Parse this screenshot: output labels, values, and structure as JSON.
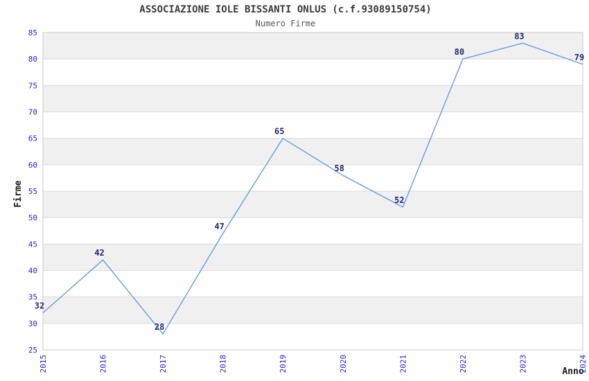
{
  "chart_data": {
    "type": "line",
    "title": "ASSOCIAZIONE IOLE BISSANTI ONLUS (c.f.93089150754)",
    "subtitle": "Numero Firme",
    "xlabel": "Anno",
    "ylabel": "Firme",
    "categories": [
      "2015",
      "2016",
      "2017",
      "2018",
      "2019",
      "2020",
      "2021",
      "2022",
      "2023",
      "2024"
    ],
    "values": [
      32,
      42,
      28,
      47,
      65,
      58,
      52,
      80,
      83,
      79
    ],
    "ylim": [
      25,
      85
    ],
    "ytick_step": 5,
    "yticks": [
      25,
      30,
      35,
      40,
      45,
      50,
      55,
      60,
      65,
      70,
      75,
      80,
      85
    ],
    "grid": true,
    "legend_position": "none",
    "colors": {
      "line": "#6da2e2",
      "tick_label": "#2222dd",
      "data_label": "#272775",
      "band": "#f0f0f0",
      "grid": "#dcdcdc",
      "border": "#c8c8c8",
      "title": "#3a3a3a",
      "subtitle": "#555555",
      "axis_title": "#1a1a1a"
    }
  }
}
